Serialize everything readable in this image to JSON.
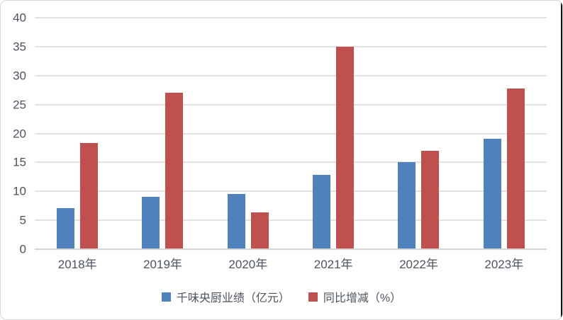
{
  "chart_data": {
    "type": "bar",
    "categories": [
      "2018年",
      "2019年",
      "2020年",
      "2021年",
      "2022年",
      "2023年"
    ],
    "series": [
      {
        "name": "千味央厨业绩（亿元）",
        "key": "performance",
        "color": "#4F81BD",
        "values": [
          7.0,
          8.9,
          9.4,
          12.7,
          14.9,
          19.0
        ]
      },
      {
        "name": "同比增减（%）",
        "key": "growth",
        "color": "#C0504D",
        "values": [
          18.2,
          26.9,
          6.2,
          34.9,
          16.9,
          27.7
        ]
      }
    ],
    "title": "",
    "xlabel": "",
    "ylabel": "",
    "ylim": [
      0,
      40
    ],
    "yticks": [
      0,
      5,
      10,
      15,
      20,
      25,
      30,
      35,
      40
    ],
    "grid": true,
    "legend_position": "bottom"
  },
  "colors": {
    "background": "#FFFFFF",
    "frame_border": "#D9D9D9",
    "gridline": "#E2E2E2",
    "axis_line": "#D6D6D6",
    "axis_text": "#4D5360"
  }
}
